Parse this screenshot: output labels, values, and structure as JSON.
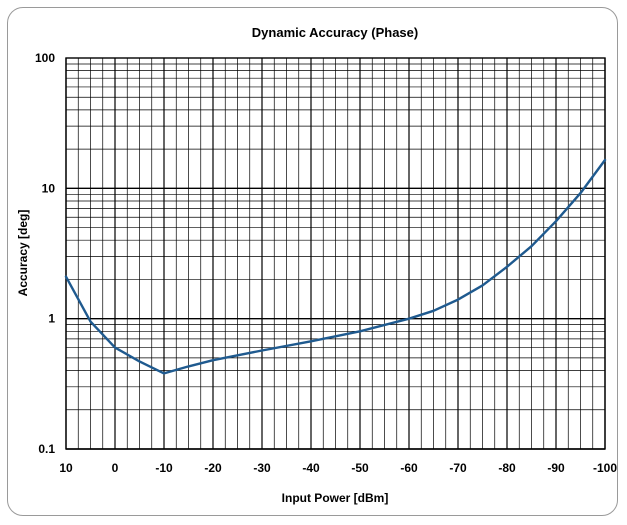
{
  "chart_data": {
    "type": "line",
    "title": "Dynamic Accuracy (Phase)",
    "xlabel": "Input Power [dBm]",
    "ylabel": "Accuracy [deg]",
    "xlim": [
      10,
      -100
    ],
    "ylim": [
      0.1,
      100
    ],
    "yscale": "log",
    "grid": true,
    "x_ticks": [
      "10",
      "0",
      "-10",
      "-20",
      "-30",
      "-40",
      "-50",
      "-60",
      "-70",
      "-80",
      "-90",
      "-100"
    ],
    "y_ticks": [
      "0.1",
      "1",
      "10",
      "100"
    ],
    "series": [
      {
        "color": "#1f5a8f",
        "x": [
          10,
          5,
          0,
          -5,
          -10,
          -15,
          -20,
          -30,
          -40,
          -50,
          -60,
          -65,
          -70,
          -75,
          -80,
          -85,
          -90,
          -95,
          -100
        ],
        "y": [
          2.1,
          0.95,
          0.6,
          0.47,
          0.38,
          0.43,
          0.48,
          0.57,
          0.67,
          0.8,
          1.0,
          1.15,
          1.4,
          1.8,
          2.5,
          3.6,
          5.6,
          9.2,
          16.5
        ]
      }
    ]
  }
}
